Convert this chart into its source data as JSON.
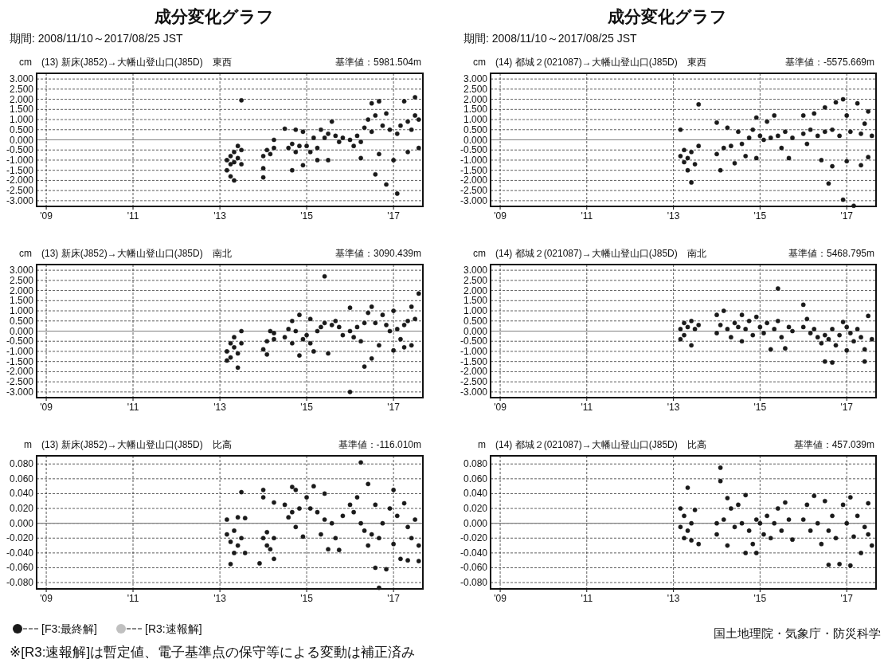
{
  "chart_data": [
    {
      "type": "scatter",
      "title": "成分変化グラフ",
      "subtitle": "期間: 2008/11/10～2017/08/25 JST",
      "ylabel": "cm",
      "annotations": [
        "(13) 新床(J852)→大幡山登山口(J85D)　東西",
        "基準値：5981.504m"
      ],
      "xlim": [
        "2008-10-12",
        "2017-09-05"
      ],
      "ylim": [
        -3.28,
        3.28
      ],
      "xticks": [
        {
          "value": "2009-01-01",
          "label": "'09"
        },
        {
          "value": "2011-01-01",
          "label": "'11"
        },
        {
          "value": "2013-01-01",
          "label": "'13"
        },
        {
          "value": "2015-01-01",
          "label": "'15"
        },
        {
          "value": "2017-01-01",
          "label": "'17"
        }
      ],
      "yticks": [
        {
          "value": 3,
          "label": "3.000"
        },
        {
          "value": 2.5,
          "label": "2.500"
        },
        {
          "value": 2,
          "label": "2.000"
        },
        {
          "value": 1.5,
          "label": "1.500"
        },
        {
          "value": 1,
          "label": "1.000"
        },
        {
          "value": 0.5,
          "label": "0.500"
        },
        {
          "value": 0,
          "label": "0.000"
        },
        {
          "value": -0.5,
          "label": "-0.500"
        },
        {
          "value": -1,
          "label": "-1.000"
        },
        {
          "value": -1.5,
          "label": "-1.500"
        },
        {
          "value": -2,
          "label": "-2.000"
        },
        {
          "value": -2.5,
          "label": "-2.500"
        },
        {
          "value": -3,
          "label": "-3.000"
        }
      ],
      "grid": true,
      "marker": "circle",
      "ref_lines": [
        {
          "axis": "y",
          "value": 0,
          "color": "#808080"
        }
      ],
      "series": [
        {
          "color": "#1a1a1a",
          "x": [
            "2013-03",
            "2013-03",
            "2013-04",
            "2013-04",
            "2013-04",
            "2013-05",
            "2013-05",
            "2013-05",
            "2013-06",
            "2013-06",
            "2013-07",
            "2013-07",
            "2013-07",
            "2014-01",
            "2014-01",
            "2014-01",
            "2014-02",
            "2014-03",
            "2014-04",
            "2014-04",
            "2014-07",
            "2014-08",
            "2014-09",
            "2014-09",
            "2014-10",
            "2014-10",
            "2014-11",
            "2014-12",
            "2014-12",
            "2015-01",
            "2015-02",
            "2015-03",
            "2015-04",
            "2015-04",
            "2015-05",
            "2015-06",
            "2015-07",
            "2015-07",
            "2015-08",
            "2015-09",
            "2015-10",
            "2015-11",
            "2016-01",
            "2016-02",
            "2016-03",
            "2016-04",
            "2016-04",
            "2016-05",
            "2016-06",
            "2016-07",
            "2016-07",
            "2016-08",
            "2016-08",
            "2016-09",
            "2016-09",
            "2016-10",
            "2016-11",
            "2016-11",
            "2016-12",
            "2017-01",
            "2017-02",
            "2017-02",
            "2017-03",
            "2017-04",
            "2017-05",
            "2017-05",
            "2017-06",
            "2017-07",
            "2017-07",
            "2017-08",
            "2017-08"
          ],
          "values": [
            -1.0,
            -1.5,
            -0.8,
            -1.2,
            -1.8,
            -0.6,
            -1.1,
            -2.0,
            -0.3,
            -0.9,
            -0.5,
            -1.2,
            1.95,
            -0.8,
            -1.85,
            -1.4,
            -0.5,
            -0.7,
            -0.4,
            0.0,
            0.55,
            -0.4,
            -0.2,
            -1.5,
            0.5,
            -0.6,
            -0.3,
            -1.25,
            0.4,
            -0.3,
            -0.6,
            0.1,
            -0.4,
            -1.0,
            0.5,
            0.1,
            0.3,
            -1.0,
            0.9,
            0.2,
            -0.1,
            0.1,
            0.0,
            -0.3,
            0.2,
            -0.1,
            -0.9,
            0.6,
            1.0,
            1.8,
            0.4,
            1.2,
            -1.7,
            1.9,
            -0.7,
            0.7,
            -2.2,
            1.3,
            0.5,
            -1.0,
            0.3,
            -2.65,
            0.7,
            1.9,
            0.9,
            -0.6,
            0.5,
            2.1,
            1.2,
            1.0,
            -0.4
          ]
        }
      ]
    },
    {
      "type": "scatter",
      "title": "成分変化グラフ",
      "subtitle": "期間: 2008/11/10～2017/08/25 JST",
      "ylabel": "cm",
      "annotations": [
        "(14) 都城２(021087)→大幡山登山口(J85D)　東西",
        "基準値：-5575.669m"
      ],
      "xlim": [
        "2008-10-12",
        "2017-09-05"
      ],
      "ylim": [
        -3.28,
        3.28
      ],
      "xticks": [
        {
          "value": "2009-01-01",
          "label": "'09"
        },
        {
          "value": "2011-01-01",
          "label": "'11"
        },
        {
          "value": "2013-01-01",
          "label": "'13"
        },
        {
          "value": "2015-01-01",
          "label": "'15"
        },
        {
          "value": "2017-01-01",
          "label": "'17"
        }
      ],
      "yticks": [
        {
          "value": 3,
          "label": "3.000"
        },
        {
          "value": 2.5,
          "label": "2.500"
        },
        {
          "value": 2,
          "label": "2.000"
        },
        {
          "value": 1.5,
          "label": "1.500"
        },
        {
          "value": 1,
          "label": "1.000"
        },
        {
          "value": 0.5,
          "label": "0.500"
        },
        {
          "value": 0,
          "label": "0.000"
        },
        {
          "value": -0.5,
          "label": "-0.500"
        },
        {
          "value": -1,
          "label": "-1.000"
        },
        {
          "value": -1.5,
          "label": "-1.500"
        },
        {
          "value": -2,
          "label": "-2.000"
        },
        {
          "value": -2.5,
          "label": "-2.500"
        },
        {
          "value": -3,
          "label": "-3.000"
        }
      ],
      "grid": true,
      "marker": "circle",
      "ref_lines": [
        {
          "axis": "y",
          "value": 0,
          "color": "#808080"
        }
      ],
      "series": [
        {
          "color": "#1a1a1a",
          "x": [
            "2013-03",
            "2013-03",
            "2013-04",
            "2013-04",
            "2013-05",
            "2013-05",
            "2013-06",
            "2013-06",
            "2013-07",
            "2013-08",
            "2013-08",
            "2014-01",
            "2014-01",
            "2014-02",
            "2014-03",
            "2014-04",
            "2014-05",
            "2014-06",
            "2014-07",
            "2014-08",
            "2014-09",
            "2014-10",
            "2014-11",
            "2014-12",
            "2014-12",
            "2015-01",
            "2015-02",
            "2015-03",
            "2015-04",
            "2015-05",
            "2015-06",
            "2015-07",
            "2015-08",
            "2015-09",
            "2015-10",
            "2016-01",
            "2016-01",
            "2016-02",
            "2016-03",
            "2016-04",
            "2016-05",
            "2016-06",
            "2016-07",
            "2016-07",
            "2016-08",
            "2016-09",
            "2016-09",
            "2016-10",
            "2016-11",
            "2016-12",
            "2016-12",
            "2017-01",
            "2017-01",
            "2017-02",
            "2017-03",
            "2017-04",
            "2017-05",
            "2017-05",
            "2017-06",
            "2017-07",
            "2017-07",
            "2017-08"
          ],
          "values": [
            0.5,
            -0.8,
            -1.1,
            -0.5,
            -1.5,
            -0.9,
            -2.1,
            -0.6,
            -1.2,
            1.75,
            -0.3,
            0.85,
            -0.7,
            -1.5,
            -0.4,
            0.6,
            -0.3,
            -1.15,
            0.4,
            -0.2,
            -0.8,
            0.1,
            0.5,
            1.1,
            -0.9,
            0.2,
            0.0,
            0.9,
            0.1,
            1.2,
            0.2,
            -0.4,
            0.4,
            -0.9,
            0.1,
            0.3,
            1.2,
            -0.2,
            0.5,
            1.3,
            0.2,
            -1.0,
            0.4,
            1.6,
            -2.15,
            -1.3,
            0.5,
            1.85,
            0.2,
            2.0,
            -2.95,
            -1.05,
            1.2,
            0.4,
            -3.25,
            1.8,
            0.3,
            -1.25,
            0.8,
            1.4,
            -0.85,
            0.2
          ]
        }
      ]
    },
    {
      "type": "scatter",
      "ylabel": "cm",
      "annotations": [
        "(13) 新床(J852)→大幡山登山口(J85D)　南北",
        "基準値：3090.439m"
      ],
      "xlim": [
        "2008-10-12",
        "2017-09-05"
      ],
      "ylim": [
        -3.28,
        3.28
      ],
      "xticks": [
        {
          "value": "2009-01-01",
          "label": "'09"
        },
        {
          "value": "2011-01-01",
          "label": "'11"
        },
        {
          "value": "2013-01-01",
          "label": "'13"
        },
        {
          "value": "2015-01-01",
          "label": "'15"
        },
        {
          "value": "2017-01-01",
          "label": "'17"
        }
      ],
      "yticks": [
        {
          "value": 3,
          "label": "3.000"
        },
        {
          "value": 2.5,
          "label": "2.500"
        },
        {
          "value": 2,
          "label": "2.000"
        },
        {
          "value": 1.5,
          "label": "1.500"
        },
        {
          "value": 1,
          "label": "1.000"
        },
        {
          "value": 0.5,
          "label": "0.500"
        },
        {
          "value": 0,
          "label": "0.000"
        },
        {
          "value": -0.5,
          "label": "-0.500"
        },
        {
          "value": -1,
          "label": "-1.000"
        },
        {
          "value": -1.5,
          "label": "-1.500"
        },
        {
          "value": -2,
          "label": "-2.000"
        },
        {
          "value": -2.5,
          "label": "-2.500"
        },
        {
          "value": -3,
          "label": "-3.000"
        }
      ],
      "grid": true,
      "marker": "circle",
      "ref_lines": [
        {
          "axis": "y",
          "value": 0,
          "color": "#808080"
        }
      ],
      "series": [
        {
          "color": "#1a1a1a",
          "x": [
            "2013-03",
            "2013-03",
            "2013-04",
            "2013-04",
            "2013-05",
            "2013-05",
            "2013-06",
            "2013-06",
            "2013-07",
            "2013-07",
            "2014-01",
            "2014-02",
            "2014-02",
            "2014-03",
            "2014-04",
            "2014-04",
            "2014-07",
            "2014-08",
            "2014-09",
            "2014-09",
            "2014-10",
            "2014-11",
            "2014-11",
            "2014-12",
            "2015-01",
            "2015-02",
            "2015-02",
            "2015-03",
            "2015-04",
            "2015-05",
            "2015-06",
            "2015-06",
            "2015-07",
            "2015-08",
            "2015-09",
            "2015-10",
            "2015-11",
            "2016-01",
            "2016-01",
            "2016-01",
            "2016-02",
            "2016-03",
            "2016-04",
            "2016-05",
            "2016-05",
            "2016-06",
            "2016-07",
            "2016-07",
            "2016-08",
            "2016-09",
            "2016-10",
            "2016-11",
            "2016-12",
            "2017-01",
            "2017-01",
            "2017-02",
            "2017-03",
            "2017-04",
            "2017-04",
            "2017-05",
            "2017-06",
            "2017-06",
            "2017-07",
            "2017-08"
          ],
          "values": [
            -1.0,
            -1.45,
            -0.6,
            -1.3,
            -0.3,
            -0.8,
            -1.8,
            -1.1,
            0.0,
            -0.6,
            -0.9,
            -1.15,
            -0.5,
            0.0,
            -0.4,
            -0.1,
            -0.3,
            0.1,
            0.5,
            -0.6,
            0.0,
            -1.2,
            0.8,
            -0.4,
            -0.2,
            0.6,
            -0.6,
            -1.0,
            0.0,
            0.2,
            2.7,
            0.4,
            -1.1,
            0.3,
            0.5,
            0.2,
            -0.2,
            0.0,
            1.15,
            -3.0,
            -0.3,
            0.2,
            -0.5,
            0.4,
            -1.75,
            0.9,
            1.2,
            -1.35,
            0.4,
            -0.7,
            0.8,
            0.3,
            0.0,
            -0.95,
            1.0,
            0.1,
            -0.4,
            0.3,
            -0.8,
            0.5,
            1.2,
            -0.7,
            0.6,
            1.85
          ]
        }
      ]
    },
    {
      "type": "scatter",
      "ylabel": "cm",
      "annotations": [
        "(14) 都城２(021087)→大幡山登山口(J85D)　南北",
        "基準値：5468.795m"
      ],
      "xlim": [
        "2008-10-12",
        "2017-09-05"
      ],
      "ylim": [
        -3.28,
        3.28
      ],
      "xticks": [
        {
          "value": "2009-01-01",
          "label": "'09"
        },
        {
          "value": "2011-01-01",
          "label": "'11"
        },
        {
          "value": "2013-01-01",
          "label": "'13"
        },
        {
          "value": "2015-01-01",
          "label": "'15"
        },
        {
          "value": "2017-01-01",
          "label": "'17"
        }
      ],
      "yticks": [
        {
          "value": 3,
          "label": "3.000"
        },
        {
          "value": 2.5,
          "label": "2.500"
        },
        {
          "value": 2,
          "label": "2.000"
        },
        {
          "value": 1.5,
          "label": "1.500"
        },
        {
          "value": 1,
          "label": "1.000"
        },
        {
          "value": 0.5,
          "label": "0.500"
        },
        {
          "value": 0,
          "label": "0.000"
        },
        {
          "value": -0.5,
          "label": "-0.500"
        },
        {
          "value": -1,
          "label": "-1.000"
        },
        {
          "value": -1.5,
          "label": "-1.500"
        },
        {
          "value": -2,
          "label": "-2.000"
        },
        {
          "value": -2.5,
          "label": "-2.500"
        },
        {
          "value": -3,
          "label": "-3.000"
        }
      ],
      "grid": true,
      "marker": "circle",
      "ref_lines": [
        {
          "axis": "y",
          "value": 0,
          "color": "#808080"
        }
      ],
      "series": [
        {
          "color": "#1a1a1a",
          "x": [
            "2013-03",
            "2013-03",
            "2013-04",
            "2013-04",
            "2013-05",
            "2013-06",
            "2013-06",
            "2013-07",
            "2013-08",
            "2014-01",
            "2014-01",
            "2014-02",
            "2014-03",
            "2014-04",
            "2014-05",
            "2014-06",
            "2014-07",
            "2014-08",
            "2014-08",
            "2014-09",
            "2014-10",
            "2014-11",
            "2014-12",
            "2015-01",
            "2015-02",
            "2015-03",
            "2015-04",
            "2015-05",
            "2015-06",
            "2015-06",
            "2015-07",
            "2015-08",
            "2015-09",
            "2015-10",
            "2016-01",
            "2016-01",
            "2016-02",
            "2016-03",
            "2016-04",
            "2016-05",
            "2016-06",
            "2016-07",
            "2016-07",
            "2016-08",
            "2016-09",
            "2016-09",
            "2016-10",
            "2016-11",
            "2016-12",
            "2017-01",
            "2017-01",
            "2017-02",
            "2017-03",
            "2017-04",
            "2017-05",
            "2017-06",
            "2017-06",
            "2017-07",
            "2017-08"
          ],
          "values": [
            0.1,
            -0.4,
            0.4,
            -0.2,
            0.2,
            -0.7,
            0.5,
            0.1,
            0.3,
            0.8,
            -0.1,
            0.3,
            1.0,
            0.1,
            -0.3,
            0.4,
            0.2,
            0.8,
            -0.5,
            0.1,
            0.5,
            -0.2,
            0.7,
            0.2,
            -0.1,
            0.4,
            -0.9,
            0.1,
            2.1,
            0.5,
            -0.3,
            -0.85,
            0.2,
            0.0,
            0.2,
            1.3,
            0.6,
            -0.1,
            0.1,
            -0.3,
            -0.6,
            -0.2,
            -1.5,
            -0.4,
            -1.55,
            0.1,
            -0.7,
            -0.2,
            0.45,
            -0.95,
            0.2,
            -0.1,
            -0.5,
            0.1,
            -0.3,
            -1.5,
            -0.9,
            0.75,
            -0.4
          ]
        }
      ]
    },
    {
      "type": "scatter",
      "ylabel": "m",
      "annotations": [
        "(13) 新床(J852)→大幡山登山口(J85D)　比高",
        "基準値：-116.010m",
        "※[R3:速報解]は暫定値、電子基準点の保守等による変動は補正済み"
      ],
      "xlim": [
        "2008-10-12",
        "2017-09-05"
      ],
      "ylim": [
        -0.0885,
        0.091
      ],
      "xticks": [
        {
          "value": "2009-01-01",
          "label": "'09"
        },
        {
          "value": "2011-01-01",
          "label": "'11"
        },
        {
          "value": "2013-01-01",
          "label": "'13"
        },
        {
          "value": "2015-01-01",
          "label": "'15"
        },
        {
          "value": "2017-01-01",
          "label": "'17"
        }
      ],
      "yticks": [
        {
          "value": 0.08,
          "label": "0.080"
        },
        {
          "value": 0.06,
          "label": "0.060"
        },
        {
          "value": 0.04,
          "label": "0.040"
        },
        {
          "value": 0.02,
          "label": "0.020"
        },
        {
          "value": 0,
          "label": "0.000"
        },
        {
          "value": -0.02,
          "label": "-0.020"
        },
        {
          "value": -0.04,
          "label": "-0.040"
        },
        {
          "value": -0.06,
          "label": "-0.060"
        },
        {
          "value": -0.08,
          "label": "-0.080"
        }
      ],
      "grid": true,
      "marker": "circle",
      "legend": "bottom",
      "ref_lines": [
        {
          "axis": "y",
          "value": 0,
          "color": "#808080"
        }
      ],
      "series": [
        {
          "name": "[F3:最終解]",
          "color": "#1a1a1a",
          "x": [
            "2013-03",
            "2013-03",
            "2013-04",
            "2013-04",
            "2013-05",
            "2013-05",
            "2013-06",
            "2013-06",
            "2013-07",
            "2013-07",
            "2013-08",
            "2013-08",
            "2013-12",
            "2014-01",
            "2014-01",
            "2014-01",
            "2014-02",
            "2014-02",
            "2014-03",
            "2014-04",
            "2014-04",
            "2014-04",
            "2014-07",
            "2014-08",
            "2014-09",
            "2014-09",
            "2014-10",
            "2014-10",
            "2014-11",
            "2014-12",
            "2015-01",
            "2015-02",
            "2015-03",
            "2015-04",
            "2015-05",
            "2015-06",
            "2015-06",
            "2015-07",
            "2015-08",
            "2015-09",
            "2015-10",
            "2015-11",
            "2016-01",
            "2016-02",
            "2016-03",
            "2016-04",
            "2016-04",
            "2016-05",
            "2016-06",
            "2016-06",
            "2016-07",
            "2016-08",
            "2016-08",
            "2016-09",
            "2016-09",
            "2016-10",
            "2016-11",
            "2016-12",
            "2017-01",
            "2017-01",
            "2017-02",
            "2017-03",
            "2017-04",
            "2017-05",
            "2017-05",
            "2017-06",
            "2017-07",
            "2017-08",
            "2017-08"
          ],
          "values": [
            -0.015,
            0.005,
            -0.055,
            -0.025,
            -0.04,
            -0.01,
            -0.03,
            0.008,
            0.042,
            -0.02,
            -0.04,
            0.007,
            -0.054,
            -0.02,
            0.045,
            0.035,
            -0.03,
            -0.012,
            -0.035,
            0.028,
            -0.048,
            -0.02,
            0.025,
            0.008,
            0.049,
            0.015,
            0.045,
            -0.005,
            0.02,
            -0.018,
            0.035,
            0.02,
            0.05,
            0.015,
            -0.015,
            0.04,
            0.005,
            -0.035,
            0.0,
            -0.02,
            -0.036,
            0.01,
            0.025,
            0.015,
            0.035,
            0.082,
            0.0,
            -0.01,
            0.053,
            -0.03,
            -0.015,
            -0.06,
            0.025,
            -0.087,
            -0.02,
            0.0,
            -0.062,
            0.02,
            -0.028,
            0.045,
            0.01,
            -0.048,
            0.027,
            -0.005,
            -0.05,
            -0.02,
            0.005,
            -0.03,
            -0.051
          ]
        },
        {
          "name": "[R3:速報解]",
          "color": "#c0c0c0"
        }
      ]
    },
    {
      "type": "scatter",
      "ylabel": "m",
      "annotations": [
        "(14) 都城２(021087)→大幡山登山口(J85D)　比高",
        "基準値：457.039m",
        "国土地理院・気象庁・防災科学"
      ],
      "xlim": [
        "2008-10-12",
        "2017-09-05"
      ],
      "ylim": [
        -0.0885,
        0.091
      ],
      "xticks": [
        {
          "value": "2009-01-01",
          "label": "'09"
        },
        {
          "value": "2011-01-01",
          "label": "'11"
        },
        {
          "value": "2013-01-01",
          "label": "'13"
        },
        {
          "value": "2015-01-01",
          "label": "'15"
        },
        {
          "value": "2017-01-01",
          "label": "'17"
        }
      ],
      "yticks": [
        {
          "value": 0.08,
          "label": "0.080"
        },
        {
          "value": 0.06,
          "label": "0.060"
        },
        {
          "value": 0.04,
          "label": "0.040"
        },
        {
          "value": 0.02,
          "label": "0.020"
        },
        {
          "value": 0,
          "label": "0.000"
        },
        {
          "value": -0.02,
          "label": "-0.020"
        },
        {
          "value": -0.04,
          "label": "-0.040"
        },
        {
          "value": -0.06,
          "label": "-0.060"
        },
        {
          "value": -0.08,
          "label": "-0.080"
        }
      ],
      "grid": true,
      "marker": "circle",
      "ref_lines": [
        {
          "axis": "y",
          "value": 0,
          "color": "#808080"
        }
      ],
      "series": [
        {
          "color": "#1a1a1a",
          "x": [
            "2013-03",
            "2013-03",
            "2013-04",
            "2013-04",
            "2013-05",
            "2013-05",
            "2013-06",
            "2013-06",
            "2013-07",
            "2013-08",
            "2014-01",
            "2014-01",
            "2014-02",
            "2014-02",
            "2014-03",
            "2014-04",
            "2014-04",
            "2014-05",
            "2014-06",
            "2014-07",
            "2014-08",
            "2014-09",
            "2014-09",
            "2014-10",
            "2014-11",
            "2014-12",
            "2014-12",
            "2015-01",
            "2015-02",
            "2015-03",
            "2015-04",
            "2015-05",
            "2015-06",
            "2015-07",
            "2015-08",
            "2015-09",
            "2015-10",
            "2016-01",
            "2016-02",
            "2016-03",
            "2016-04",
            "2016-05",
            "2016-06",
            "2016-07",
            "2016-08",
            "2016-08",
            "2016-09",
            "2016-10",
            "2016-11",
            "2016-12",
            "2017-01",
            "2017-02",
            "2017-02",
            "2017-03",
            "2017-04",
            "2017-05",
            "2017-06",
            "2017-07",
            "2017-07",
            "2017-08"
          ],
          "values": [
            0.02,
            -0.005,
            -0.02,
            0.01,
            0.048,
            -0.01,
            0.0,
            -0.023,
            0.018,
            -0.028,
            0.0,
            -0.015,
            0.075,
            0.057,
            0.005,
            0.034,
            -0.03,
            0.02,
            -0.005,
            0.025,
            0.0,
            0.038,
            -0.04,
            -0.01,
            -0.028,
            0.005,
            -0.04,
            0.0,
            -0.015,
            0.01,
            -0.02,
            0.0,
            0.02,
            -0.01,
            0.028,
            0.005,
            -0.022,
            0.005,
            0.025,
            -0.01,
            0.037,
            0.0,
            -0.028,
            0.03,
            -0.056,
            -0.01,
            0.01,
            -0.02,
            -0.055,
            0.025,
            0.0,
            0.035,
            -0.057,
            -0.018,
            0.01,
            -0.04,
            -0.005,
            0.027,
            -0.015,
            -0.03
          ]
        }
      ]
    }
  ]
}
